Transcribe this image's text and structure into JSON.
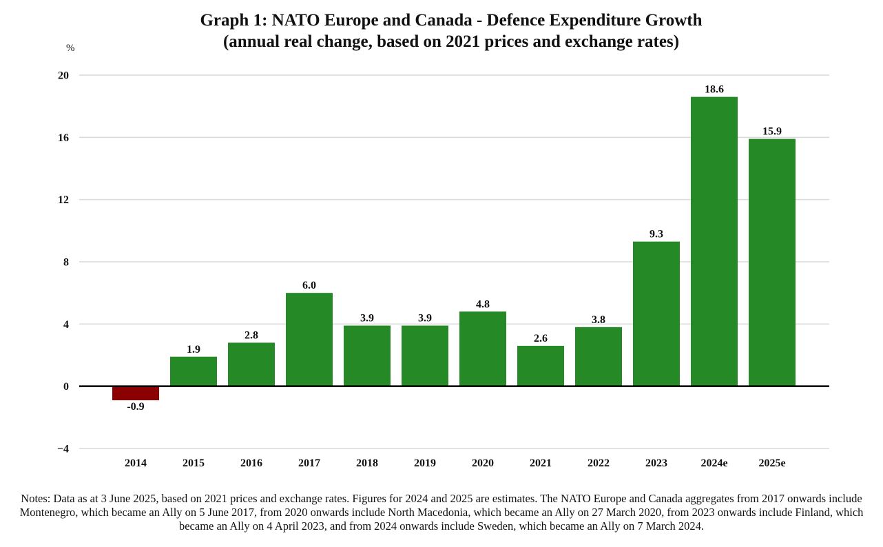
{
  "chart_data": {
    "type": "bar",
    "title": "Graph 1: NATO Europe and Canada - Defence Expenditure Growth",
    "subtitle": "(annual real change, based on 2021 prices and exchange rates)",
    "xlabel": "",
    "ylabel": "%",
    "ylim": [
      -4,
      20
    ],
    "yticks": [
      -4,
      0,
      4,
      8,
      12,
      16,
      20
    ],
    "ytick_labels": [
      "−4",
      "0",
      "4",
      "8",
      "12",
      "16",
      "20"
    ],
    "grid": true,
    "categories": [
      "2014",
      "2015",
      "2016",
      "2017",
      "2018",
      "2019",
      "2020",
      "2021",
      "2022",
      "2023",
      "2024e",
      "2025e"
    ],
    "values": [
      -0.9,
      1.9,
      2.8,
      6.0,
      3.9,
      3.9,
      4.8,
      2.6,
      3.8,
      9.3,
      18.6,
      15.9
    ],
    "value_labels": [
      "-0.9",
      "1.9",
      "2.8",
      "6.0",
      "3.9",
      "3.9",
      "4.8",
      "2.6",
      "3.8",
      "9.3",
      "18.6",
      "15.9"
    ],
    "colors": {
      "positive": "#258a25",
      "negative": "#8b0000",
      "gridline": "#d9d9d9",
      "zero_line": "#000000"
    },
    "legend": "none"
  },
  "notes": "Notes: Data as at 3 June 2025, based on 2021 prices and exchange rates. Figures for 2024 and 2025 are estimates. The NATO Europe and Canada aggregates from 2017 onwards include Montenegro, which became an Ally on 5 June 2017, from 2020 onwards include North Macedonia, which became an Ally on 27 March 2020, from 2023 onwards include Finland, which became an Ally on 4 April 2023, and from 2024 onwards include Sweden, which became an Ally on 7 March 2024."
}
